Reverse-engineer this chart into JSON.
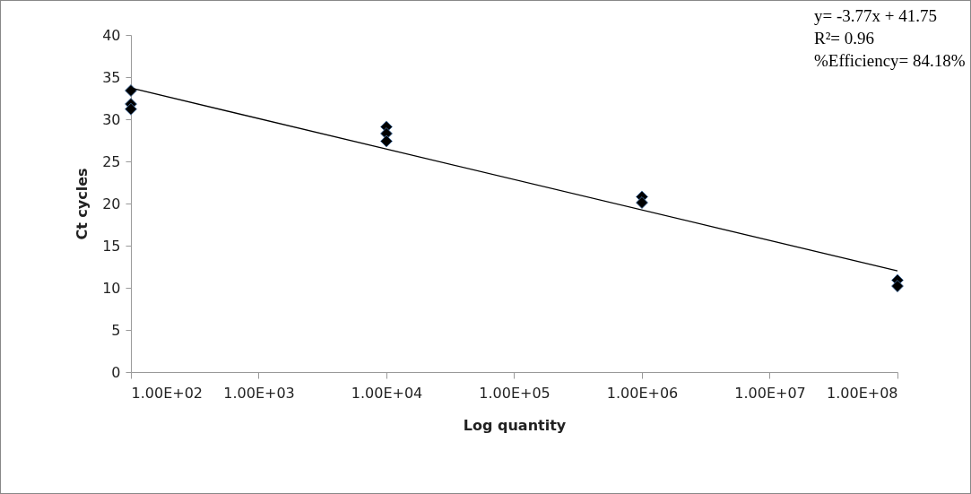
{
  "chart_data": {
    "type": "scatter",
    "xlabel": "Log quantity",
    "ylabel": "Ct cycles",
    "log": "x",
    "grid": false,
    "xlim": [
      100,
      100000000
    ],
    "xticks": [
      {
        "value": 100,
        "label": "1.00E+02"
      },
      {
        "value": 1000,
        "label": "1.00E+03"
      },
      {
        "value": 10000,
        "label": "1.00E+04"
      },
      {
        "value": 100000,
        "label": "1.00E+05"
      },
      {
        "value": 1000000,
        "label": "1.00E+06"
      },
      {
        "value": 10000000,
        "label": "1.00E+07"
      },
      {
        "value": 100000000,
        "label": "1.00E+08"
      }
    ],
    "ylim": [
      0,
      40
    ],
    "yticks": [
      0,
      5,
      10,
      15,
      20,
      25,
      30,
      35,
      40
    ],
    "series": [
      {
        "type": "scatter",
        "marker": "diamond",
        "color": "#000000",
        "x": [
          100,
          100,
          100,
          10000,
          10000,
          10000,
          1000000,
          1000000,
          100000000,
          100000000
        ],
        "values": [
          33.4,
          31.8,
          31.2,
          29.1,
          28.3,
          27.4,
          20.8,
          20.1,
          10.9,
          10.2
        ]
      },
      {
        "type": "line",
        "color": "#000000",
        "x": [
          100,
          100000000
        ],
        "values": [
          33.7,
          12.0
        ]
      }
    ],
    "annotations": [
      "y= -3.77x + 41.75",
      "R²= 0.96",
      "%Efficiency= 84.18%"
    ]
  }
}
